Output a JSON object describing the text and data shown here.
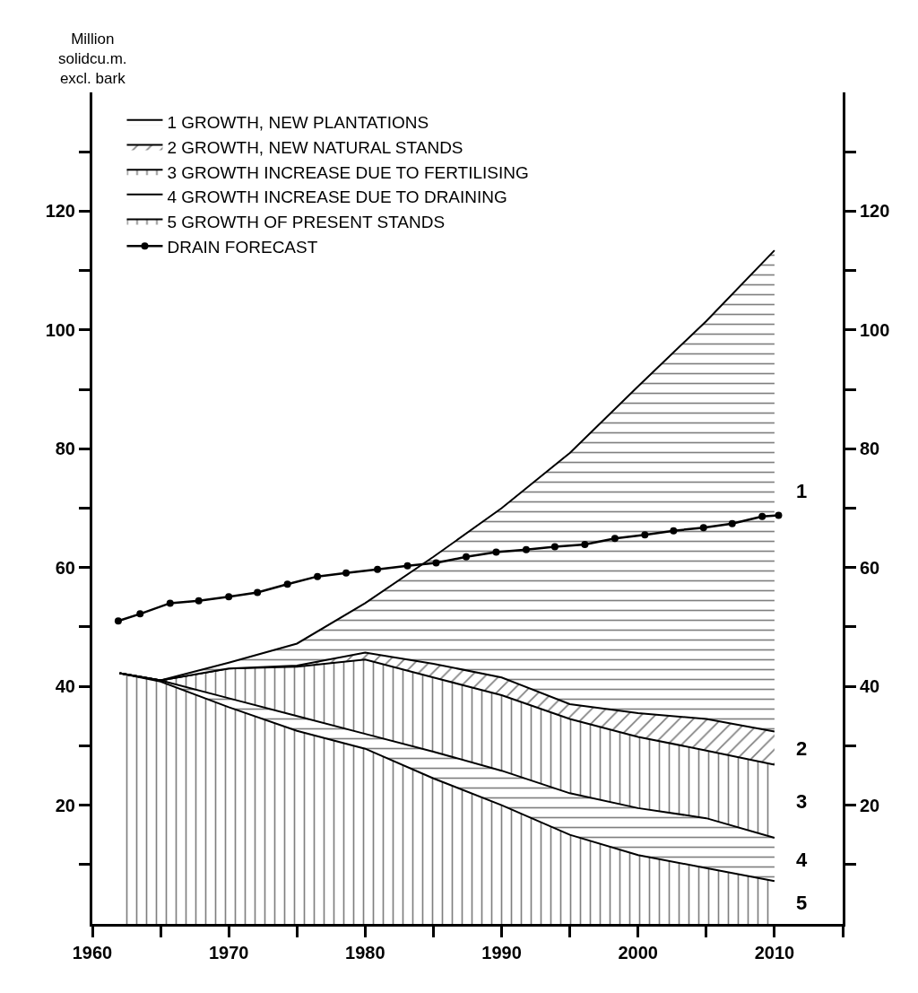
{
  "chart_data": {
    "type": "area",
    "stacked": true,
    "ylabel": "Million\nsolidcu.m.\nexcl. bark",
    "x": [
      1962,
      1965,
      1970,
      1975,
      1980,
      1985,
      1990,
      1995,
      2000,
      2005,
      2010
    ],
    "series": [
      {
        "name": "5 GROWTH OF PRESENT STANDS",
        "color": "#000000",
        "values": [
          42.2,
          40.8,
          36.5,
          32.5,
          29.5,
          24.5,
          20,
          15,
          11.6,
          9.4,
          7.2
        ]
      },
      {
        "name": "4 GROWTH INCREASE DUE TO DRAINING",
        "color": "#000000",
        "values": [
          0,
          0.2,
          1.5,
          2.5,
          2.5,
          4.5,
          5.8,
          7,
          7.9,
          8.4,
          7.3
        ]
      },
      {
        "name": "3 GROWTH INCREASE DUE TO FERTILISING",
        "color": "#000000",
        "values": [
          0,
          0,
          5,
          8.3,
          12.5,
          12.5,
          12.7,
          12.5,
          12,
          11.4,
          12.3
        ]
      },
      {
        "name": "2 GROWTH, NEW NATURAL STANDS",
        "color": "#000000",
        "values": [
          0,
          0,
          0,
          0.2,
          1.2,
          2.3,
          3,
          2.5,
          4,
          5.3,
          5.6
        ]
      },
      {
        "name": "1 GROWTH, NEW PLANTATIONS",
        "color": "#000000",
        "values": [
          0,
          0,
          1,
          3.7,
          8.3,
          18,
          28.5,
          42.3,
          55,
          67,
          81
        ]
      },
      {
        "name": "DRAIN FORECAST",
        "type": "line",
        "color": "#000000",
        "marker": "circle",
        "line_style": "solid",
        "x": [
          1961.9,
          1963.5,
          1965.7,
          1967.8,
          1970,
          1972.1,
          1974.3,
          1976.5,
          1978.6,
          1980.9,
          1983.1,
          1985.2,
          1987.4,
          1989.6,
          1991.8,
          1993.9,
          1996.1,
          1998.3,
          2000.5,
          2002.6,
          2004.8,
          2006.9,
          2009.1,
          2010.3
        ],
        "values": [
          51,
          52.2,
          54,
          54.4,
          55.1,
          55.8,
          57.2,
          58.5,
          59.1,
          59.7,
          60.3,
          60.8,
          61.8,
          62.6,
          63,
          63.5,
          63.9,
          64.9,
          65.5,
          66.2,
          66.7,
          67.4,
          68.6,
          68.8
        ]
      }
    ],
    "annotations": [
      "1",
      "2",
      "3",
      "4",
      "5"
    ],
    "xlim": [
      1960,
      2015
    ],
    "xticks": [
      1960,
      {
        "value": 1965,
        "label": null
      },
      1970,
      {
        "value": 1975,
        "label": null
      },
      1980,
      {
        "value": 1985,
        "label": null
      },
      1990,
      {
        "value": 1995,
        "label": null
      },
      2000,
      {
        "value": 2005,
        "label": null
      },
      2010,
      {
        "value": 2015,
        "label": null
      }
    ],
    "ylim": [
      0,
      140
    ],
    "yticks": [
      {
        "value": 10,
        "label": null
      },
      20,
      {
        "value": 30,
        "label": null
      },
      40,
      {
        "value": 50,
        "label": null
      },
      60,
      {
        "value": 70,
        "label": null
      },
      80,
      {
        "value": 90,
        "label": null
      },
      100,
      {
        "value": 110,
        "label": null
      },
      120,
      {
        "value": 130,
        "label": null
      }
    ],
    "y2lim": [
      0,
      140
    ],
    "y2ticks": [
      {
        "value": 10,
        "label": null
      },
      20,
      {
        "value": 30,
        "label": null
      },
      40,
      {
        "value": 50,
        "label": null
      },
      60,
      {
        "value": 70,
        "label": null
      },
      80,
      {
        "value": 90,
        "label": null
      },
      100,
      {
        "value": 110,
        "label": null
      },
      120,
      {
        "value": 130,
        "label": null
      }
    ],
    "legend": "top left"
  }
}
